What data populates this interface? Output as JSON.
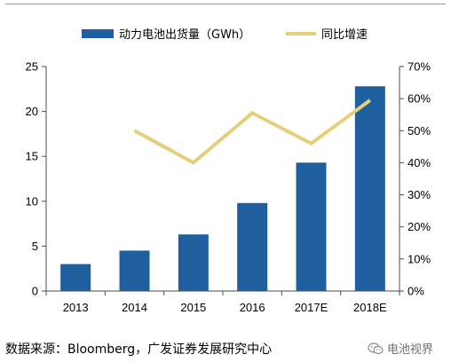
{
  "chart_data": {
    "type": "bar",
    "categories": [
      "2013",
      "2014",
      "2015",
      "2016",
      "2017E",
      "2018E"
    ],
    "series": [
      {
        "name": "动力电池出货量（GWh）",
        "kind": "bar",
        "axis": "left",
        "color": "#1f5fa0",
        "values": [
          3.0,
          4.5,
          6.3,
          9.8,
          14.3,
          22.8
        ]
      },
      {
        "name": "同比增速",
        "kind": "line",
        "axis": "right",
        "color": "#e6cf7a",
        "values": [
          null,
          0.5,
          0.4,
          0.555,
          0.46,
          0.595
        ]
      }
    ],
    "y_left": {
      "min": 0,
      "max": 25,
      "ticks": [
        0,
        5,
        10,
        15,
        20,
        25
      ],
      "tick_labels": [
        "0",
        "5",
        "10",
        "15",
        "20",
        "25"
      ]
    },
    "y_right": {
      "min": 0,
      "max": 0.7,
      "ticks": [
        0,
        0.1,
        0.2,
        0.3,
        0.4,
        0.5,
        0.6,
        0.7
      ],
      "tick_labels": [
        "0%",
        "10%",
        "20%",
        "30%",
        "40%",
        "50%",
        "60%",
        "70%"
      ]
    },
    "title": "",
    "xlabel": "",
    "ylabel": "",
    "grid": false,
    "legend": "top"
  },
  "footer": {
    "source": "数据来源：Bloomberg，广发证券发展研究中心",
    "watermark": "电池视界",
    "watermark_icon": "wechat-icon"
  }
}
